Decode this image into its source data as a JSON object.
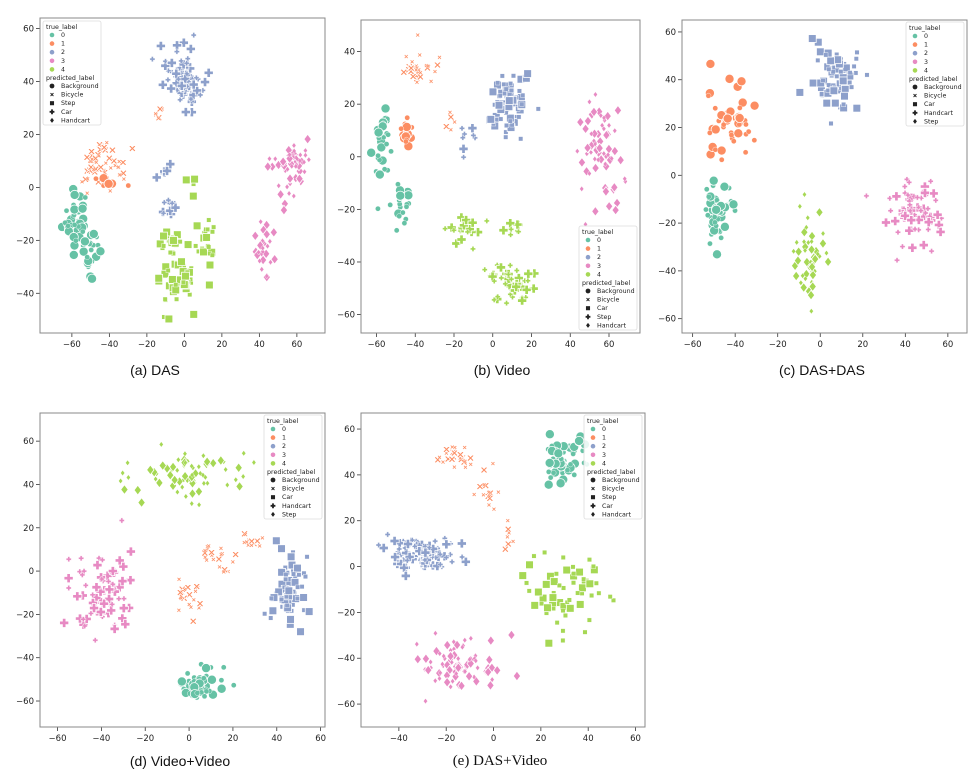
{
  "palette": {
    "0": "#66c2a5",
    "1": "#fc8d62",
    "2": "#8da0cb",
    "3": "#e78ac3",
    "4": "#a6d854"
  },
  "chart_data": [
    {
      "type": "scatter",
      "title": "(a) DAS",
      "xlim": [
        -77,
        75
      ],
      "ylim": [
        -55,
        64
      ],
      "xticks": [
        -60,
        -40,
        -20,
        0,
        20,
        40,
        60
      ],
      "yticks": [
        -40,
        -20,
        0,
        20,
        40,
        60
      ],
      "legend_placement": "top-left",
      "true_label_title": "true_label",
      "true_labels": [
        "0",
        "1",
        "2",
        "3",
        "4"
      ],
      "predicted_label_title": "predicted_label",
      "predicted_labels": [
        "Background",
        "Bicycle",
        "Step",
        "Car",
        "Handcart"
      ],
      "clusters": [
        {
          "label": "0",
          "pred": "Background",
          "blobs": [
            [
              -58,
              -12,
              5,
              8,
              40
            ],
            [
              -50,
              -25,
              3,
              6,
              20
            ]
          ]
        },
        {
          "label": "1",
          "pred": "Bicycle",
          "blobs": [
            [
              -48,
              8,
              6,
              6,
              35
            ],
            [
              -36,
              8,
              5,
              5,
              15
            ],
            [
              -13,
              28,
              3,
              3,
              6
            ]
          ]
        },
        {
          "label": "1",
          "pred": "Background",
          "blobs": [
            [
              -42,
              3,
              6,
              3,
              8
            ]
          ]
        },
        {
          "label": "2",
          "pred": "Car",
          "blobs": [
            [
              0,
              42,
              7,
              8,
              70
            ],
            [
              -8,
              -8,
              4,
              3,
              12
            ],
            [
              -10,
              7,
              2,
              3,
              5
            ]
          ]
        },
        {
          "label": "3",
          "pred": "Handcart",
          "blobs": [
            [
              55,
              8,
              7,
              9,
              50
            ],
            [
              42,
              -25,
              5,
              9,
              30
            ]
          ]
        },
        {
          "label": "4",
          "pred": "Step",
          "blobs": [
            [
              -5,
              -35,
              8,
              7,
              45
            ],
            [
              -8,
              -20,
              6,
              3,
              15
            ],
            [
              12,
              -20,
              4,
              6,
              20
            ],
            [
              5,
              0,
              2,
              4,
              5
            ]
          ]
        }
      ]
    },
    {
      "type": "scatter",
      "title": "(b) Video",
      "xlim": [
        -68,
        76
      ],
      "ylim": [
        -67,
        52
      ],
      "xticks": [
        -60,
        -40,
        -20,
        0,
        20,
        40,
        60
      ],
      "yticks": [
        -60,
        -40,
        -20,
        0,
        20,
        40
      ],
      "legend_placement": "bottom-right",
      "true_label_title": "true_label",
      "true_labels": [
        "0",
        "1",
        "2",
        "3",
        "4"
      ],
      "predicted_label_title": "predicted_label",
      "predicted_labels": [
        "Background",
        "Bicycle",
        "Car",
        "Step",
        "Handcart"
      ],
      "clusters": [
        {
          "label": "0",
          "pred": "Background",
          "blobs": [
            [
              -57,
              5,
              4,
              8,
              30
            ],
            [
              -48,
              -15,
              4,
              8,
              20
            ]
          ]
        },
        {
          "label": "1",
          "pred": "Bicycle",
          "blobs": [
            [
              -40,
              33,
              7,
              6,
              30
            ],
            [
              -22,
              14,
              3,
              3,
              5
            ]
          ]
        },
        {
          "label": "1",
          "pred": "Background",
          "blobs": [
            [
              -45,
              8,
              3,
              5,
              15
            ]
          ]
        },
        {
          "label": "2",
          "pred": "Car",
          "blobs": [
            [
              8,
              20,
              8,
              9,
              70
            ]
          ]
        },
        {
          "label": "2",
          "pred": "Step",
          "blobs": [
            [
              -15,
              8,
              4,
              4,
              8
            ]
          ]
        },
        {
          "label": "3",
          "pred": "Handcart",
          "blobs": [
            [
              55,
              5,
              9,
              13,
              70
            ]
          ]
        },
        {
          "label": "4",
          "pred": "Step",
          "blobs": [
            [
              10,
              -48,
              9,
              6,
              40
            ],
            [
              -15,
              -28,
              8,
              5,
              20
            ],
            [
              10,
              -28,
              5,
              3,
              8
            ]
          ]
        }
      ]
    },
    {
      "type": "scatter",
      "title": "(c) DAS+DAS",
      "xlim": [
        -65,
        69
      ],
      "ylim": [
        -66,
        65
      ],
      "xticks": [
        -60,
        -40,
        -20,
        0,
        20,
        40,
        60
      ],
      "yticks": [
        -60,
        -40,
        -20,
        0,
        20,
        40,
        60
      ],
      "legend_placement": "top-right",
      "true_label_title": "true_label",
      "true_labels": [
        "0",
        "1",
        "2",
        "3",
        "4"
      ],
      "predicted_label_title": "predicted_label",
      "predicted_labels": [
        "Background",
        "Bicycle",
        "Car",
        "Handcart",
        "Step"
      ],
      "clusters": [
        {
          "label": "0",
          "pred": "Background",
          "blobs": [
            [
              -48,
              -15,
              5,
              8,
              50
            ]
          ]
        },
        {
          "label": "1",
          "pred": "Background",
          "blobs": [
            [
              -43,
              22,
              8,
              10,
              45
            ]
          ]
        },
        {
          "label": "2",
          "pred": "Car",
          "blobs": [
            [
              8,
              40,
              8,
              10,
              70
            ]
          ]
        },
        {
          "label": "3",
          "pred": "Handcart",
          "blobs": [
            [
              45,
              -15,
              10,
              10,
              70
            ]
          ]
        },
        {
          "label": "4",
          "pred": "Step",
          "blobs": [
            [
              -5,
              -35,
              6,
              14,
              50
            ]
          ]
        }
      ]
    },
    {
      "type": "scatter",
      "title": "(d) Video+Video",
      "xlim": [
        -68,
        62
      ],
      "ylim": [
        -72,
        73
      ],
      "xticks": [
        -60,
        -40,
        -20,
        0,
        20,
        40,
        60
      ],
      "yticks": [
        -60,
        -40,
        -20,
        0,
        20,
        40,
        60
      ],
      "legend_placement": "top-right",
      "true_label_title": "true_label",
      "true_labels": [
        "0",
        "1",
        "2",
        "3",
        "4"
      ],
      "predicted_label_title": "predicted_label",
      "predicted_labels": [
        "Background",
        "Bicycle",
        "Car",
        "Handcart",
        "Step"
      ],
      "clusters": [
        {
          "label": "4",
          "pred": "Step",
          "blobs": [
            [
              2,
              45,
              18,
              8,
              70
            ]
          ]
        },
        {
          "label": "3",
          "pred": "Handcart",
          "blobs": [
            [
              -40,
              -10,
              10,
              14,
              70
            ]
          ]
        },
        {
          "label": "1",
          "pred": "Bicycle",
          "blobs": [
            [
              0,
              -12,
              5,
              6,
              20
            ],
            [
              15,
              5,
              6,
              5,
              20
            ],
            [
              28,
              15,
              5,
              3,
              12
            ]
          ]
        },
        {
          "label": "2",
          "pred": "Car",
          "blobs": [
            [
              45,
              -10,
              5,
              12,
              70
            ]
          ]
        },
        {
          "label": "0",
          "pred": "Background",
          "blobs": [
            [
              5,
              -53,
              7,
              7,
              50
            ]
          ]
        }
      ]
    },
    {
      "type": "scatter",
      "title": "(e) DAS+Video",
      "xlim": [
        -56,
        64
      ],
      "ylim": [
        -70,
        67
      ],
      "xticks": [
        -40,
        -20,
        0,
        20,
        40,
        60
      ],
      "yticks": [
        -60,
        -40,
        -20,
        0,
        20,
        40,
        60
      ],
      "legend_placement": "top-right",
      "true_label_title": "true_label",
      "true_labels": [
        "0",
        "1",
        "2",
        "3",
        "4"
      ],
      "predicted_label_title": "predicted_label",
      "predicted_labels": [
        "Background",
        "Bicycle",
        "Step",
        "Car",
        "Handcart"
      ],
      "clusters": [
        {
          "label": "0",
          "pred": "Background",
          "blobs": [
            [
              30,
              47,
              6,
              8,
              50
            ]
          ]
        },
        {
          "label": "1",
          "pred": "Bicycle",
          "blobs": [
            [
              -15,
              47,
              7,
              4,
              25
            ],
            [
              -3,
              33,
              4,
              6,
              15
            ],
            [
              7,
              13,
              3,
              4,
              8
            ]
          ]
        },
        {
          "label": "2",
          "pred": "Car",
          "blobs": [
            [
              -30,
              5,
              10,
              6,
              90
            ]
          ]
        },
        {
          "label": "3",
          "pred": "Handcart",
          "blobs": [
            [
              -15,
              -42,
              13,
              10,
              80
            ]
          ]
        },
        {
          "label": "4",
          "pred": "Step",
          "blobs": [
            [
              30,
              -10,
              12,
              12,
              60
            ]
          ]
        }
      ]
    }
  ]
}
